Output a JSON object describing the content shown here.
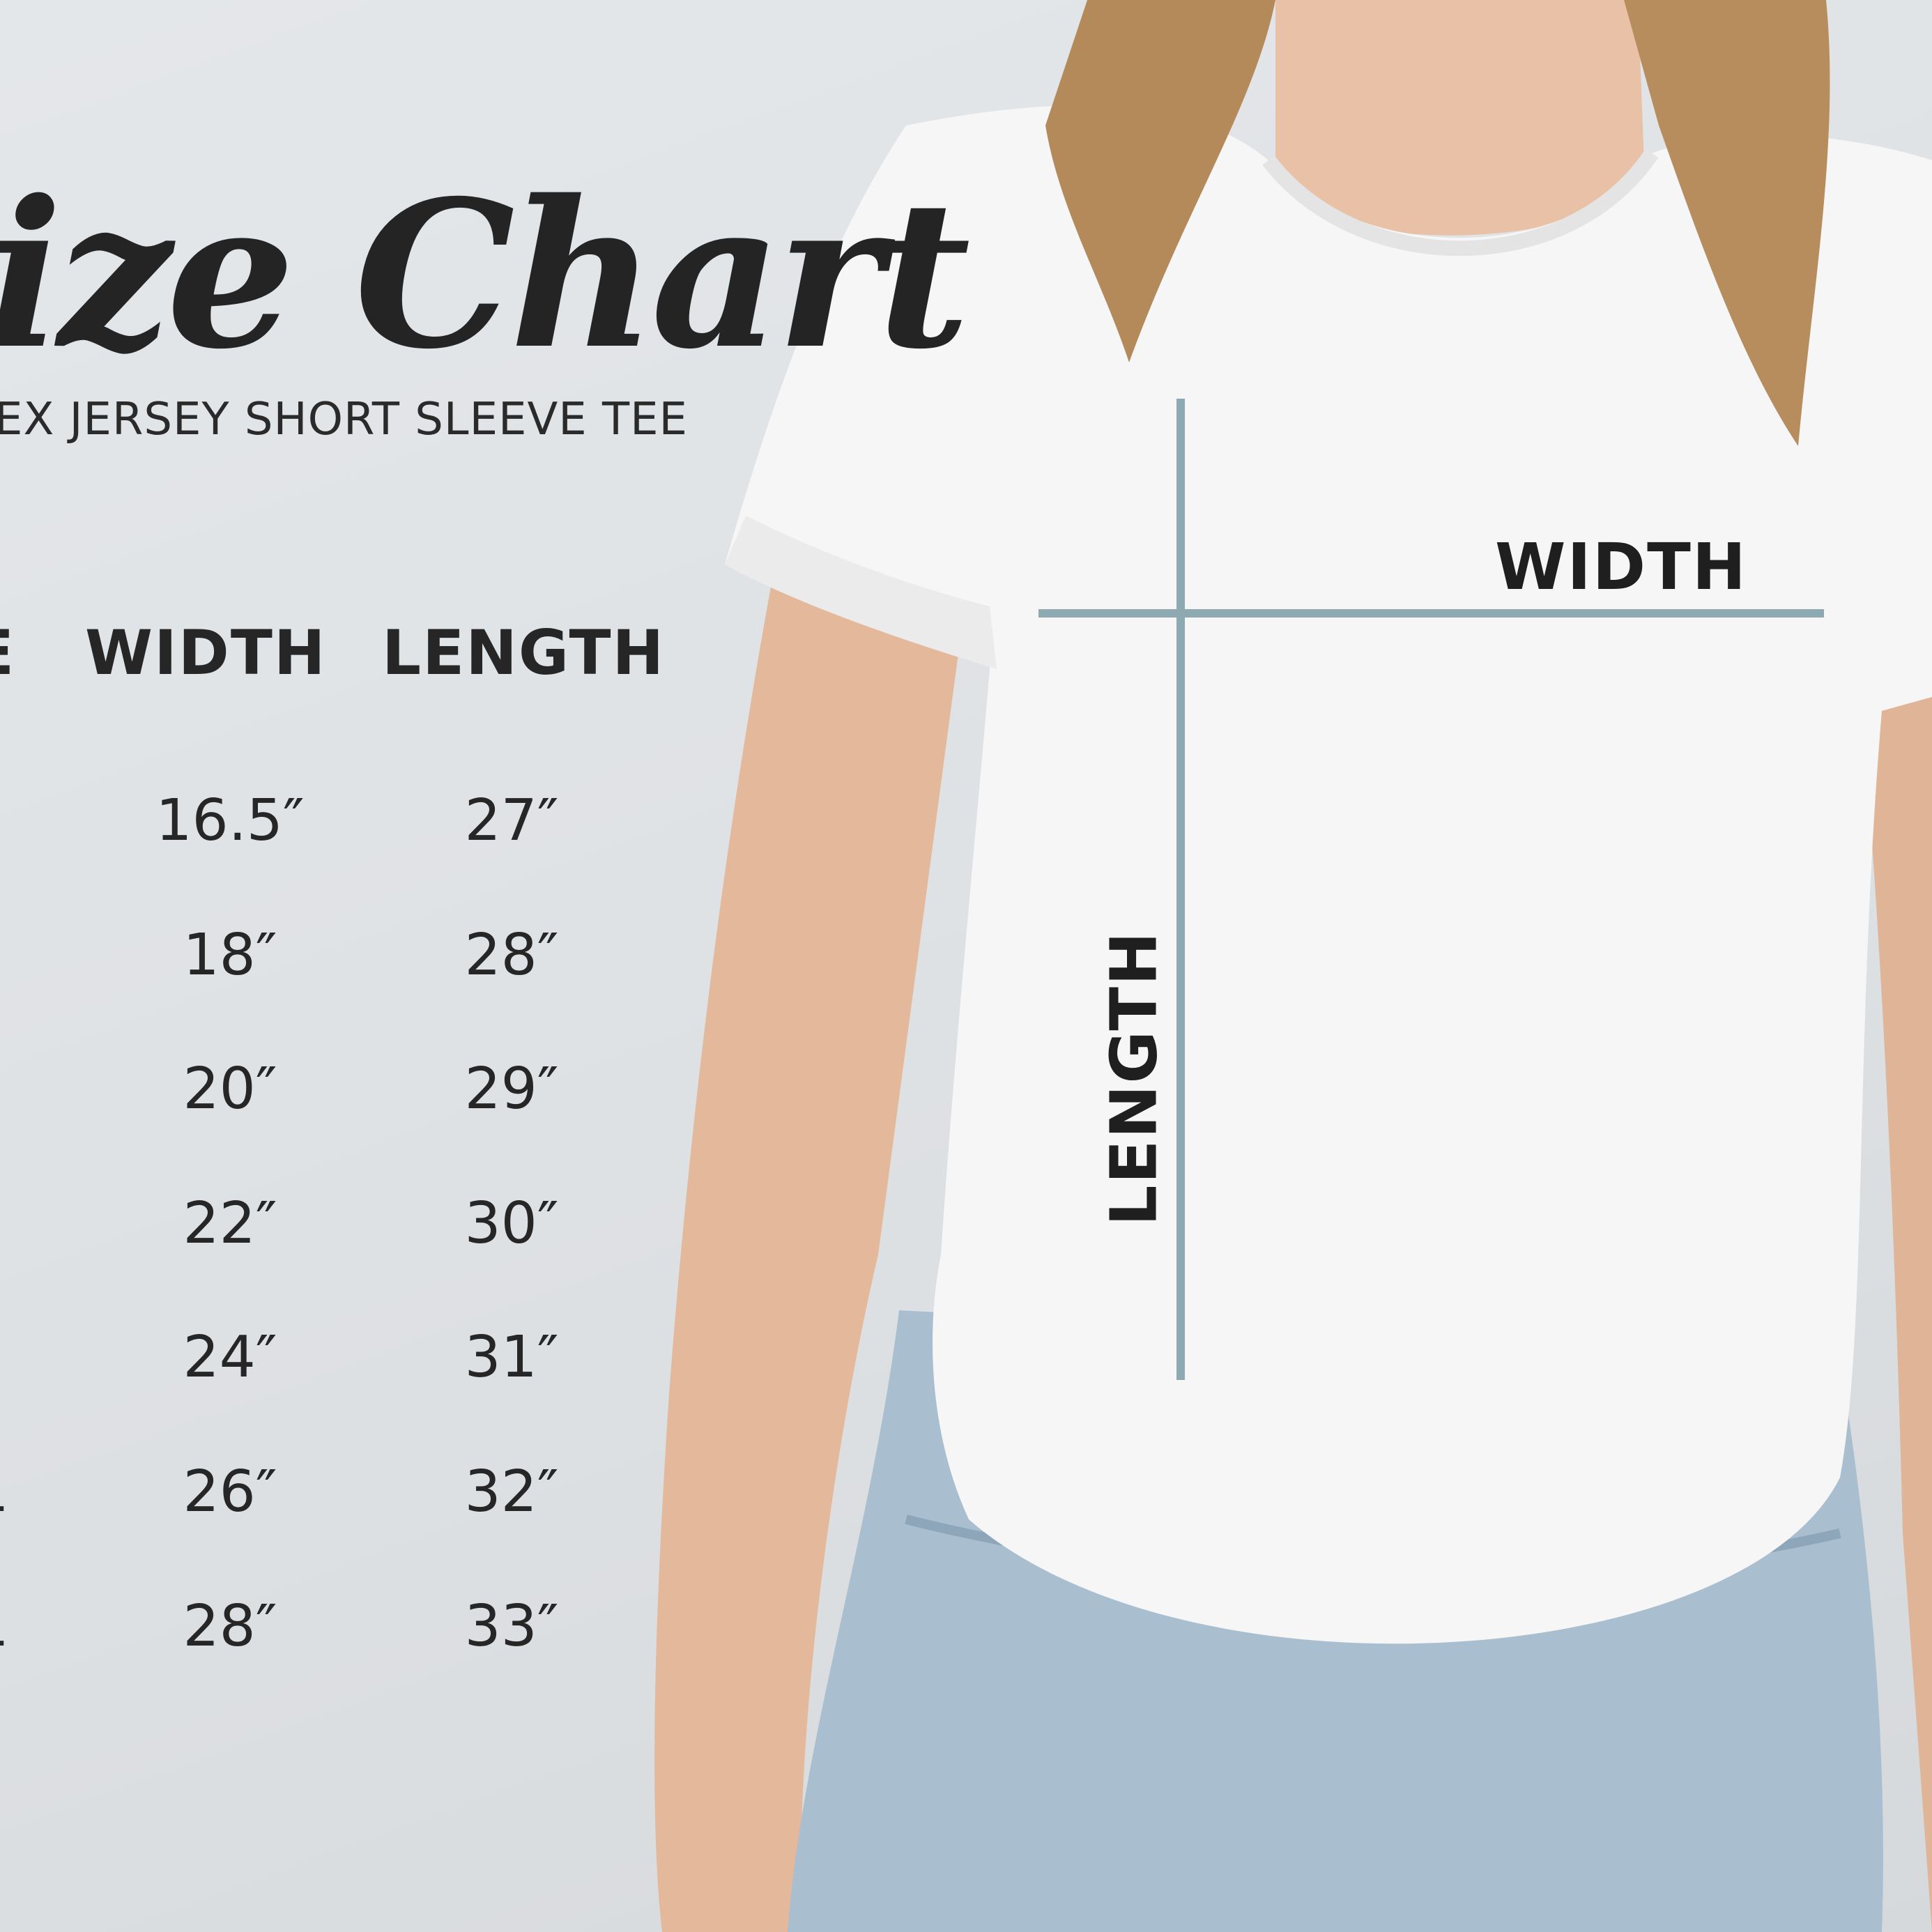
{
  "title": "ize Chart",
  "subtitle": "EX JERSEY SHORT SLEEVE TEE",
  "table": {
    "headers": [
      "E",
      "WIDTH",
      "LENGTH"
    ],
    "rows": [
      {
        "size": "",
        "width": "16.5″",
        "length": "27″"
      },
      {
        "size": "",
        "width": "18″",
        "length": "28″"
      },
      {
        "size": "",
        "width": "20″",
        "length": "29″"
      },
      {
        "size": "",
        "width": "22″",
        "length": "30″"
      },
      {
        "size": "",
        "width": "24″",
        "length": "31″"
      },
      {
        "size": "L",
        "width": "26″",
        "length": "32″"
      },
      {
        "size": "L",
        "width": "28″",
        "length": "33″"
      }
    ]
  },
  "diagram": {
    "width_label": "WIDTH",
    "length_label": "LENGTH",
    "line_color": "#8ea9b2"
  },
  "colors": {
    "background": "#dfe2e5",
    "text": "#262626",
    "shirt": "#f7f7f7",
    "denim": "#a9bfd0"
  }
}
